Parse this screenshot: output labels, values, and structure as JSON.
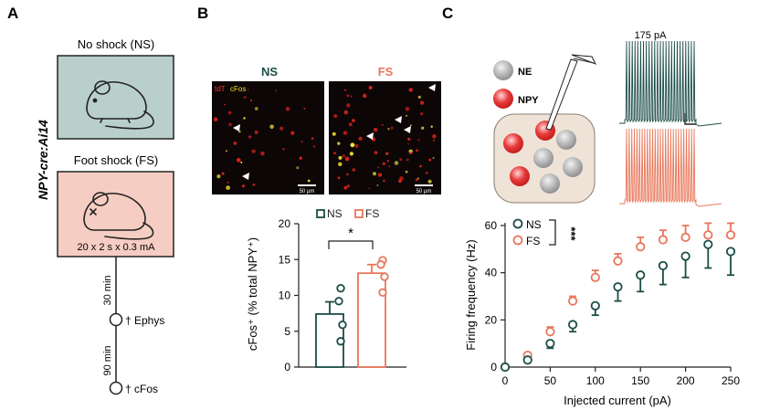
{
  "colors": {
    "ns": "#1b4d47",
    "fs": "#e8775a",
    "ns_box": "#b9cfcb",
    "fs_box": "#f6cdc2",
    "ne_cell": "#9a9a9a",
    "npy_cell": "#e23b3b",
    "slice": "#efe3d8"
  },
  "panelA": {
    "letter": "A",
    "genotype": "NPY-cre:Ai14",
    "ns_label": "No shock (NS)",
    "fs_label": "Foot shock (FS)",
    "protocol": "20 x 2 s x 0.3 mA",
    "t1": "30 min",
    "t2": "90 min",
    "ephys": "† Ephys",
    "cfos": "† cFos"
  },
  "panelB": {
    "letter": "B",
    "ns_title": "NS",
    "fs_title": "FS",
    "tdt": "tdT",
    "cfos_label": "cFos",
    "scale": "50 µm",
    "legend_ns": "NS",
    "legend_fs": "FS",
    "sig": "*"
  },
  "panelC": {
    "letter": "C",
    "ne": "NE",
    "npy": "NPY",
    "current": "175 pA",
    "legend_ns": "NS",
    "legend_fs": "FS",
    "sig": "***"
  },
  "chart_data": [
    {
      "type": "bar",
      "categories": [
        "NS",
        "FS"
      ],
      "values": [
        7.4,
        13.1
      ],
      "errors": [
        1.7,
        1.2
      ],
      "points": [
        [
          11.0,
          9.2,
          5.9,
          3.6
        ],
        [
          14.9,
          14.3,
          12.6,
          10.4
        ]
      ],
      "ylabel": "cFos⁺ (% total NPY⁺)",
      "ylim": [
        0,
        20
      ],
      "yticks": [
        0,
        5,
        10,
        15,
        20
      ],
      "significance": "*"
    },
    {
      "type": "line",
      "xlabel": "Injected current (pA)",
      "ylabel": "Firing frequency (Hz)",
      "x": [
        0,
        25,
        50,
        75,
        100,
        125,
        150,
        175,
        200,
        225,
        250
      ],
      "xlim": [
        0,
        250
      ],
      "ylim": [
        0,
        60
      ],
      "xticks": [
        0,
        50,
        100,
        150,
        200,
        250
      ],
      "yticks": [
        0,
        20,
        40,
        60
      ],
      "series": [
        {
          "name": "NS",
          "values": [
            0,
            3,
            10,
            18,
            26,
            34,
            39,
            43,
            47,
            52,
            49
          ],
          "errors": [
            0,
            1,
            2,
            3,
            4,
            6,
            7,
            8,
            9,
            10,
            10
          ]
        },
        {
          "name": "FS",
          "values": [
            0,
            5,
            15,
            28,
            38,
            45,
            51,
            54,
            55,
            56,
            56
          ],
          "errors": [
            0,
            1,
            2,
            2,
            3,
            3,
            4,
            4,
            5,
            5,
            5
          ]
        }
      ],
      "significance": "***"
    }
  ]
}
